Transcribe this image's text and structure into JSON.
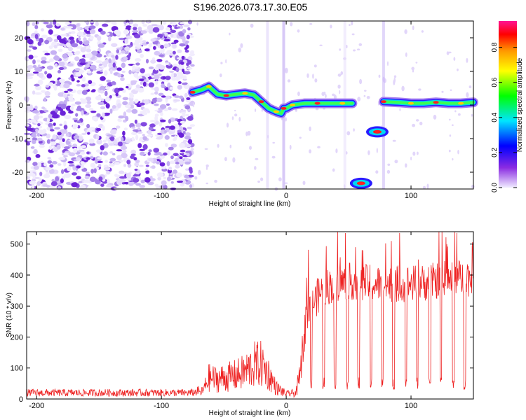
{
  "title": "S196.2026.073.17.30.E05",
  "chart_data": [
    {
      "type": "heatmap",
      "title": "S196.2026.073.17.30.E05",
      "xlabel": "Height of straight line (km)",
      "ylabel": "Frequency (Hz)",
      "xlim": [
        -208,
        150
      ],
      "ylim": [
        -25,
        25
      ],
      "x_ticks": [
        -200,
        -100,
        0,
        100
      ],
      "x_tick_labels": [
        "-200",
        "-100",
        "0",
        "100"
      ],
      "y_ticks": [
        20,
        10,
        0,
        -10,
        -20
      ],
      "y_tick_labels": [
        "20",
        "10",
        "0",
        "-10",
        "-20"
      ],
      "colorbar": {
        "label": "Normalized spectral amplitude",
        "range": [
          0,
          0.95
        ],
        "ticks": [
          0,
          0.2,
          0.4,
          0.6,
          0.8
        ],
        "tick_labels": [
          "0.0",
          "0.2",
          "0.4",
          "0.6",
          "0.8"
        ],
        "colors": [
          "#f0ecff",
          "#8a2be2",
          "#0000ff",
          "#00e5ff",
          "#00ff00",
          "#ffff00",
          "#ff9900",
          "#ff0000",
          "#ff1493"
        ]
      },
      "noise_region": {
        "x_range": [
          -208,
          -75
        ],
        "level": "low, scattered"
      },
      "ridge": [
        {
          "x": -75,
          "y": 3.8
        },
        {
          "x": -68,
          "y": 4.5
        },
        {
          "x": -62,
          "y": 5.5
        },
        {
          "x": -55,
          "y": 3.2
        },
        {
          "x": -48,
          "y": 2.8
        },
        {
          "x": -40,
          "y": 3.2
        },
        {
          "x": -33,
          "y": 3.5
        },
        {
          "x": -26,
          "y": 3.0
        },
        {
          "x": -20,
          "y": 1.0
        },
        {
          "x": -14,
          "y": -1.0
        },
        {
          "x": -8,
          "y": -2.0
        },
        {
          "x": -4,
          "y": -2.5
        },
        {
          "x": -2,
          "y": -1.0
        },
        {
          "x": 0,
          "y": -1.0
        },
        {
          "x": 5,
          "y": 0.0
        },
        {
          "x": 15,
          "y": 0.5
        },
        {
          "x": 25,
          "y": 0.5
        },
        {
          "x": 35,
          "y": 0.5
        },
        {
          "x": 45,
          "y": 0.5
        },
        {
          "x": 53,
          "y": 0.5
        }
      ],
      "ridge2": [
        {
          "x": 78,
          "y": 1.0
        },
        {
          "x": 90,
          "y": 0.8
        },
        {
          "x": 100,
          "y": 0.5
        },
        {
          "x": 110,
          "y": 0.5
        },
        {
          "x": 120,
          "y": 0.8
        },
        {
          "x": 130,
          "y": 0.5
        },
        {
          "x": 140,
          "y": 0.5
        },
        {
          "x": 150,
          "y": 0.8
        }
      ],
      "blobs": [
        {
          "x": 60,
          "y": -23.3,
          "amp": 0.75
        },
        {
          "x": 73,
          "y": -8.0,
          "amp": 0.7
        }
      ]
    },
    {
      "type": "line",
      "xlabel": "Height of straight line (km)",
      "ylabel": "SNR (10 * v/v)",
      "xlim": [
        -208,
        150
      ],
      "ylim": [
        0,
        540
      ],
      "x_ticks": [
        -200,
        -100,
        0,
        100
      ],
      "x_tick_labels": [
        "-200",
        "-100",
        "0",
        "100"
      ],
      "y_ticks": [
        0,
        100,
        200,
        300,
        400,
        500
      ],
      "y_tick_labels": [
        "0",
        "100",
        "200",
        "300",
        "400",
        "500"
      ],
      "color": "#ee2222",
      "envelope": [
        {
          "x": -208,
          "y": 20
        },
        {
          "x": -75,
          "y": 20
        },
        {
          "x": -67,
          "y": 30
        },
        {
          "x": -62,
          "y": 85
        },
        {
          "x": -55,
          "y": 80
        },
        {
          "x": -45,
          "y": 90
        },
        {
          "x": -37,
          "y": 100
        },
        {
          "x": -30,
          "y": 120
        },
        {
          "x": -25,
          "y": 140
        },
        {
          "x": -20,
          "y": 140
        },
        {
          "x": -14,
          "y": 100
        },
        {
          "x": -8,
          "y": 45
        },
        {
          "x": 0,
          "y": 20
        },
        {
          "x": 8,
          "y": 25
        },
        {
          "x": 12,
          "y": 120
        },
        {
          "x": 16,
          "y": 260
        },
        {
          "x": 20,
          "y": 300
        },
        {
          "x": 30,
          "y": 360
        },
        {
          "x": 50,
          "y": 380
        },
        {
          "x": 80,
          "y": 370
        },
        {
          "x": 110,
          "y": 375
        },
        {
          "x": 130,
          "y": 390
        },
        {
          "x": 150,
          "y": 390
        }
      ],
      "dips_x": [
        20,
        30,
        39,
        49,
        58,
        68,
        77,
        86,
        96,
        105,
        115,
        124,
        134,
        143
      ]
    }
  ]
}
